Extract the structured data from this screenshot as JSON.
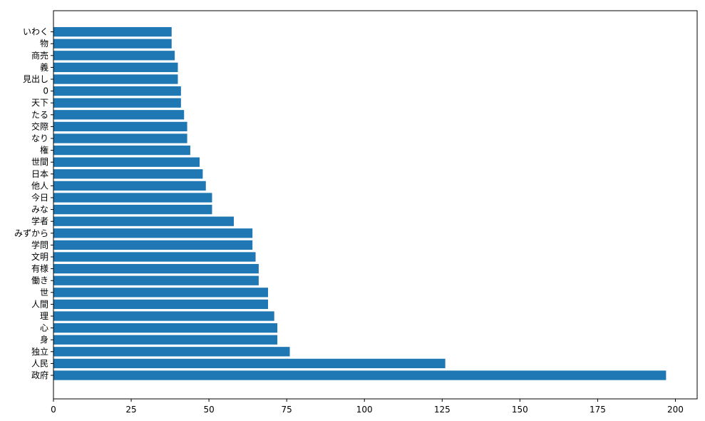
{
  "chart_data": {
    "type": "bar",
    "orientation": "horizontal",
    "categories": [
      "政府",
      "人民",
      "独立",
      "身",
      "心",
      "理",
      "人間",
      "世",
      "働き",
      "有様",
      "文明",
      "学問",
      "みずから",
      "学者",
      "みな",
      "今日",
      "他人",
      "日本",
      "世間",
      "権",
      "なり",
      "交際",
      "たる",
      "天下",
      "0",
      "見出し",
      "義",
      "商売",
      "物",
      "いわく"
    ],
    "values": [
      197,
      126,
      76,
      72,
      72,
      71,
      69,
      69,
      66,
      66,
      65,
      64,
      64,
      58,
      51,
      51,
      49,
      48,
      47,
      44,
      43,
      43,
      42,
      41,
      41,
      40,
      40,
      39,
      38,
      38
    ],
    "xticks": [
      0,
      25,
      50,
      75,
      100,
      125,
      150,
      175,
      200
    ],
    "xlim": [
      0,
      207
    ],
    "title": "",
    "xlabel": "",
    "ylabel": "",
    "bar_color": "#1f77b4",
    "grid": false
  }
}
